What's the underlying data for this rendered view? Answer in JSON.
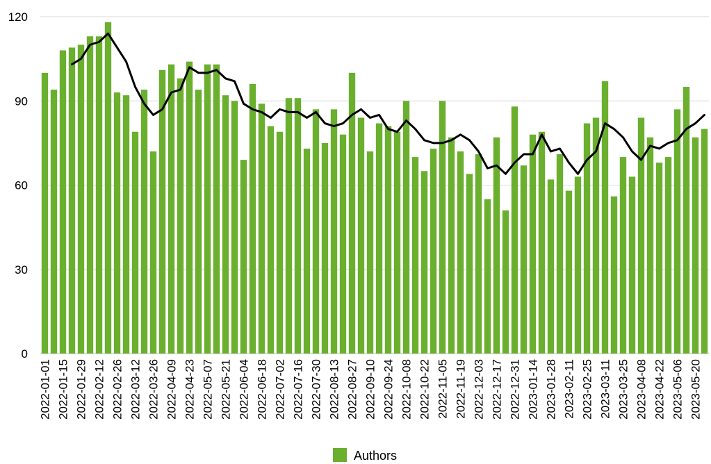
{
  "chart_data": {
    "type": "bar",
    "ylim": [
      0,
      120
    ],
    "yticks": [
      0,
      30,
      60,
      90,
      120
    ],
    "y_tick_labels": [
      "0",
      "30",
      "60",
      "90",
      "120"
    ],
    "grid": "horizontal",
    "legend_position": "bottom-center",
    "categories": [
      "2022-01-01",
      "2022-01-08",
      "2022-01-15",
      "2022-01-22",
      "2022-01-29",
      "2022-02-05",
      "2022-02-12",
      "2022-02-19",
      "2022-02-26",
      "2022-03-05",
      "2022-03-12",
      "2022-03-19",
      "2022-03-26",
      "2022-04-02",
      "2022-04-09",
      "2022-04-16",
      "2022-04-23",
      "2022-04-30",
      "2022-05-07",
      "2022-05-14",
      "2022-05-21",
      "2022-05-28",
      "2022-06-04",
      "2022-06-11",
      "2022-06-18",
      "2022-06-25",
      "2022-07-02",
      "2022-07-09",
      "2022-07-16",
      "2022-07-23",
      "2022-07-30",
      "2022-08-06",
      "2022-08-13",
      "2022-08-20",
      "2022-08-27",
      "2022-09-03",
      "2022-09-10",
      "2022-09-17",
      "2022-09-24",
      "2022-10-01",
      "2022-10-08",
      "2022-10-15",
      "2022-10-22",
      "2022-10-29",
      "2022-11-05",
      "2022-11-12",
      "2022-11-19",
      "2022-11-26",
      "2022-12-03",
      "2022-12-10",
      "2022-12-17",
      "2022-12-24",
      "2022-12-31",
      "2023-01-07",
      "2023-01-14",
      "2023-01-21",
      "2023-01-28",
      "2023-02-04",
      "2023-02-11",
      "2023-02-18",
      "2023-02-25",
      "2023-03-04",
      "2023-03-11",
      "2023-03-18",
      "2023-03-25",
      "2023-04-01",
      "2023-04-08",
      "2023-04-15",
      "2023-04-22",
      "2023-04-29",
      "2023-05-06",
      "2023-05-13",
      "2023-05-20",
      "2023-05-27"
    ],
    "x_tick_labels": [
      "2022-01-01",
      "2022-01-15",
      "2022-01-29",
      "2022-02-12",
      "2022-02-26",
      "2022-03-12",
      "2022-03-26",
      "2022-04-09",
      "2022-04-23",
      "2022-05-07",
      "2022-05-21",
      "2022-06-04",
      "2022-06-18",
      "2022-07-02",
      "2022-07-16",
      "2022-07-30",
      "2022-08-13",
      "2022-08-27",
      "2022-09-10",
      "2022-09-24",
      "2022-10-08",
      "2022-10-22",
      "2022-11-05",
      "2022-11-19",
      "2022-12-03",
      "2022-12-17",
      "2022-12-31",
      "2023-01-14",
      "2023-01-28",
      "2023-02-11",
      "2023-02-25",
      "2023-03-11",
      "2023-03-25",
      "2023-04-08",
      "2023-04-22",
      "2023-05-06",
      "2023-05-20"
    ],
    "series": [
      {
        "name": "Authors",
        "type": "bar",
        "color": "#6aaf2e",
        "values": [
          100,
          94,
          108,
          109,
          110,
          113,
          113,
          118,
          93,
          92,
          79,
          94,
          72,
          101,
          103,
          98,
          104,
          94,
          103,
          103,
          92,
          90,
          69,
          96,
          89,
          81,
          79,
          91,
          91,
          73,
          87,
          75,
          87,
          78,
          100,
          84,
          72,
          82,
          81,
          79,
          90,
          70,
          65,
          73,
          90,
          77,
          72,
          64,
          71,
          55,
          77,
          51,
          88,
          67,
          78,
          79,
          62,
          71,
          58,
          63,
          82,
          84,
          97,
          56,
          70,
          63,
          84,
          77,
          68,
          70,
          87,
          95,
          77,
          80
        ]
      },
      {
        "type": "line",
        "color": "#000000",
        "values": [
          null,
          null,
          null,
          103,
          105,
          110,
          111,
          114,
          109,
          104,
          95,
          89,
          85,
          87,
          93,
          94,
          102,
          100,
          100,
          101,
          98,
          97,
          89,
          87,
          86,
          84,
          87,
          86,
          86,
          84,
          86,
          82,
          81,
          82,
          85,
          87,
          84,
          85,
          80,
          79,
          83,
          80,
          76,
          75,
          75,
          76,
          78,
          76,
          72,
          66,
          67,
          64,
          68,
          71,
          71,
          78,
          72,
          73,
          68,
          64,
          69,
          72,
          82,
          80,
          77,
          72,
          69,
          74,
          73,
          75,
          76,
          80,
          82,
          85
        ]
      }
    ]
  }
}
